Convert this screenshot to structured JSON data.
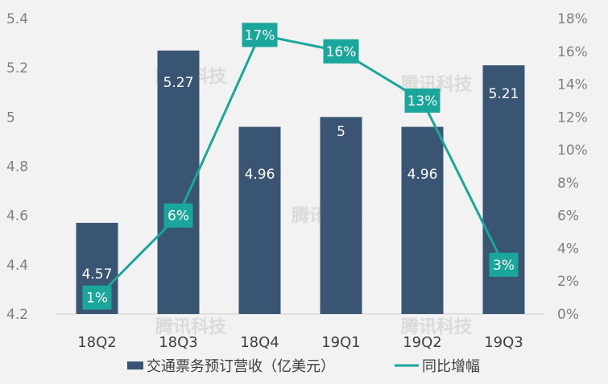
{
  "chart_data": {
    "type": "bar+line",
    "categories": [
      "18Q2",
      "18Q3",
      "18Q4",
      "19Q1",
      "19Q2",
      "19Q3"
    ],
    "series": [
      {
        "name": "交通票务预订营收（亿美元）",
        "type": "bar",
        "axis": "left",
        "values": [
          4.57,
          5.27,
          4.96,
          5,
          4.96,
          5.21
        ],
        "labels": [
          "4.57",
          "5.27",
          "4.96",
          "5",
          "4.96",
          "5.21"
        ]
      },
      {
        "name": "同比增幅",
        "type": "line",
        "axis": "right",
        "values": [
          1,
          6,
          17,
          16,
          13,
          3
        ],
        "labels": [
          "1%",
          "6%",
          "17%",
          "16%",
          "13%",
          "3%"
        ]
      }
    ],
    "y_left": {
      "min": 4.2,
      "max": 5.4,
      "ticks": [
        "4.2",
        "4.4",
        "4.6",
        "4.8",
        "5",
        "5.2",
        "5.4"
      ]
    },
    "y_right": {
      "min": 0,
      "max": 18,
      "ticks": [
        "0%",
        "2%",
        "4%",
        "6%",
        "8%",
        "10%",
        "12%",
        "14%",
        "16%",
        "18%"
      ]
    },
    "grid": false,
    "legend_position": "bottom"
  },
  "colors": {
    "bar": "#3a5573",
    "line": "#1aa69a",
    "label_box": "#1aa69a",
    "background": "#f2f2f2"
  },
  "watermark": "腾讯科技"
}
